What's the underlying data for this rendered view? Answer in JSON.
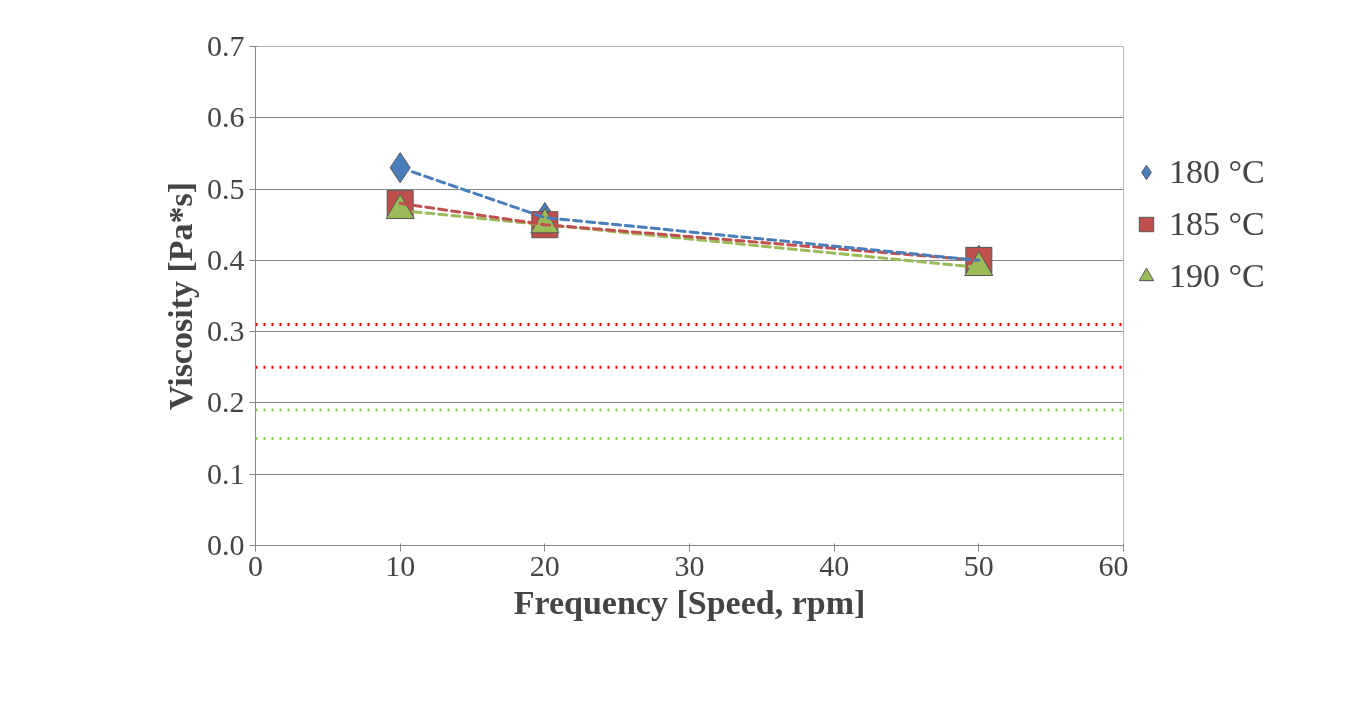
{
  "chart_data": {
    "type": "line",
    "xlabel": "Frequency [Speed, rpm]",
    "ylabel": "Viscosity [Pa*s]",
    "xlim": [
      0,
      60
    ],
    "xticks": [
      0,
      10,
      20,
      30,
      40,
      50,
      60
    ],
    "ylim": [
      0,
      0.7
    ],
    "yticks": [
      {
        "value": 0,
        "label": "0.0"
      },
      0.1,
      0.2,
      0.3,
      0.4,
      0.5,
      0.6,
      0.7
    ],
    "grid": "y",
    "legend": "right",
    "line_style": "dashed",
    "x": [
      10,
      20,
      50
    ],
    "series": [
      {
        "name": "180 °C",
        "color": "#4a7ebb",
        "marker": "diamond",
        "values": [
          0.53,
          0.46,
          0.4
        ]
      },
      {
        "name": "185 °C",
        "color": "#c0504d",
        "marker": "square",
        "values": [
          0.48,
          0.45,
          0.4
        ]
      },
      {
        "name": "190 °C",
        "color": "#9bbb59",
        "marker": "triangle",
        "values": [
          0.47,
          0.45,
          0.39
        ]
      }
    ],
    "ref_lines": [
      {
        "axis": "y",
        "value": 0.31,
        "color": "#ff0000",
        "line_style": "dotted"
      },
      {
        "axis": "y",
        "value": 0.25,
        "color": "#ff0000",
        "line_style": "dotted"
      },
      {
        "axis": "y",
        "value": 0.19,
        "color": "#92d050",
        "line_style": "dotted"
      },
      {
        "axis": "y",
        "value": 0.15,
        "color": "#92d050",
        "line_style": "dotted"
      }
    ]
  }
}
